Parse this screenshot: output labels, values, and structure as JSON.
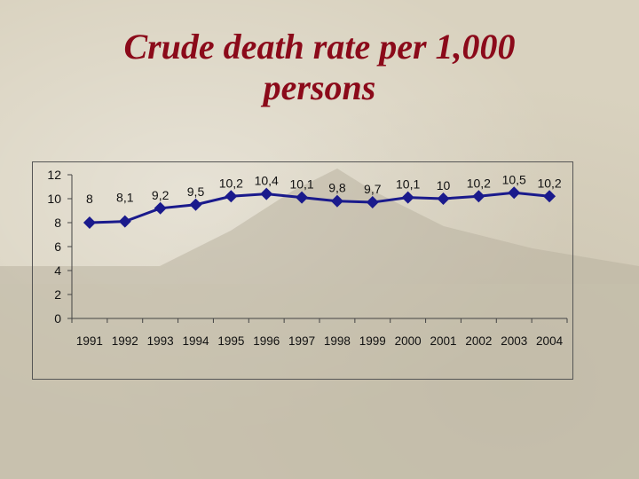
{
  "slide": {
    "title_line1": "Crude death rate per 1,000",
    "title_line2": "persons"
  },
  "colors": {
    "title": "#8b0a1a",
    "series": "#1a1a8c",
    "axis": "#444444"
  },
  "chart_data": {
    "type": "line",
    "title": "Crude death rate per 1,000 persons",
    "xlabel": "",
    "ylabel": "",
    "x": [
      "1991",
      "1992",
      "1993",
      "1994",
      "1995",
      "1996",
      "1997",
      "1998",
      "1999",
      "2000",
      "2001",
      "2002",
      "2003",
      "2004"
    ],
    "series": [
      {
        "values": [
          8,
          8.1,
          9.2,
          9.5,
          10.2,
          10.4,
          10.1,
          9.8,
          9.7,
          10.1,
          10,
          10.2,
          10.5,
          10.2
        ],
        "labels": [
          "8",
          "8,1",
          "9,2",
          "9,5",
          "10,2",
          "10,4",
          "10,1",
          "9,8",
          "9,7",
          "10,1",
          "10",
          "10,2",
          "10,5",
          "10,2"
        ]
      }
    ],
    "ylim": [
      0,
      12
    ],
    "yticks": [
      "0",
      "2",
      "4",
      "6",
      "8",
      "10",
      "12"
    ],
    "grid": false,
    "legend": "none",
    "marker": "diamond"
  }
}
